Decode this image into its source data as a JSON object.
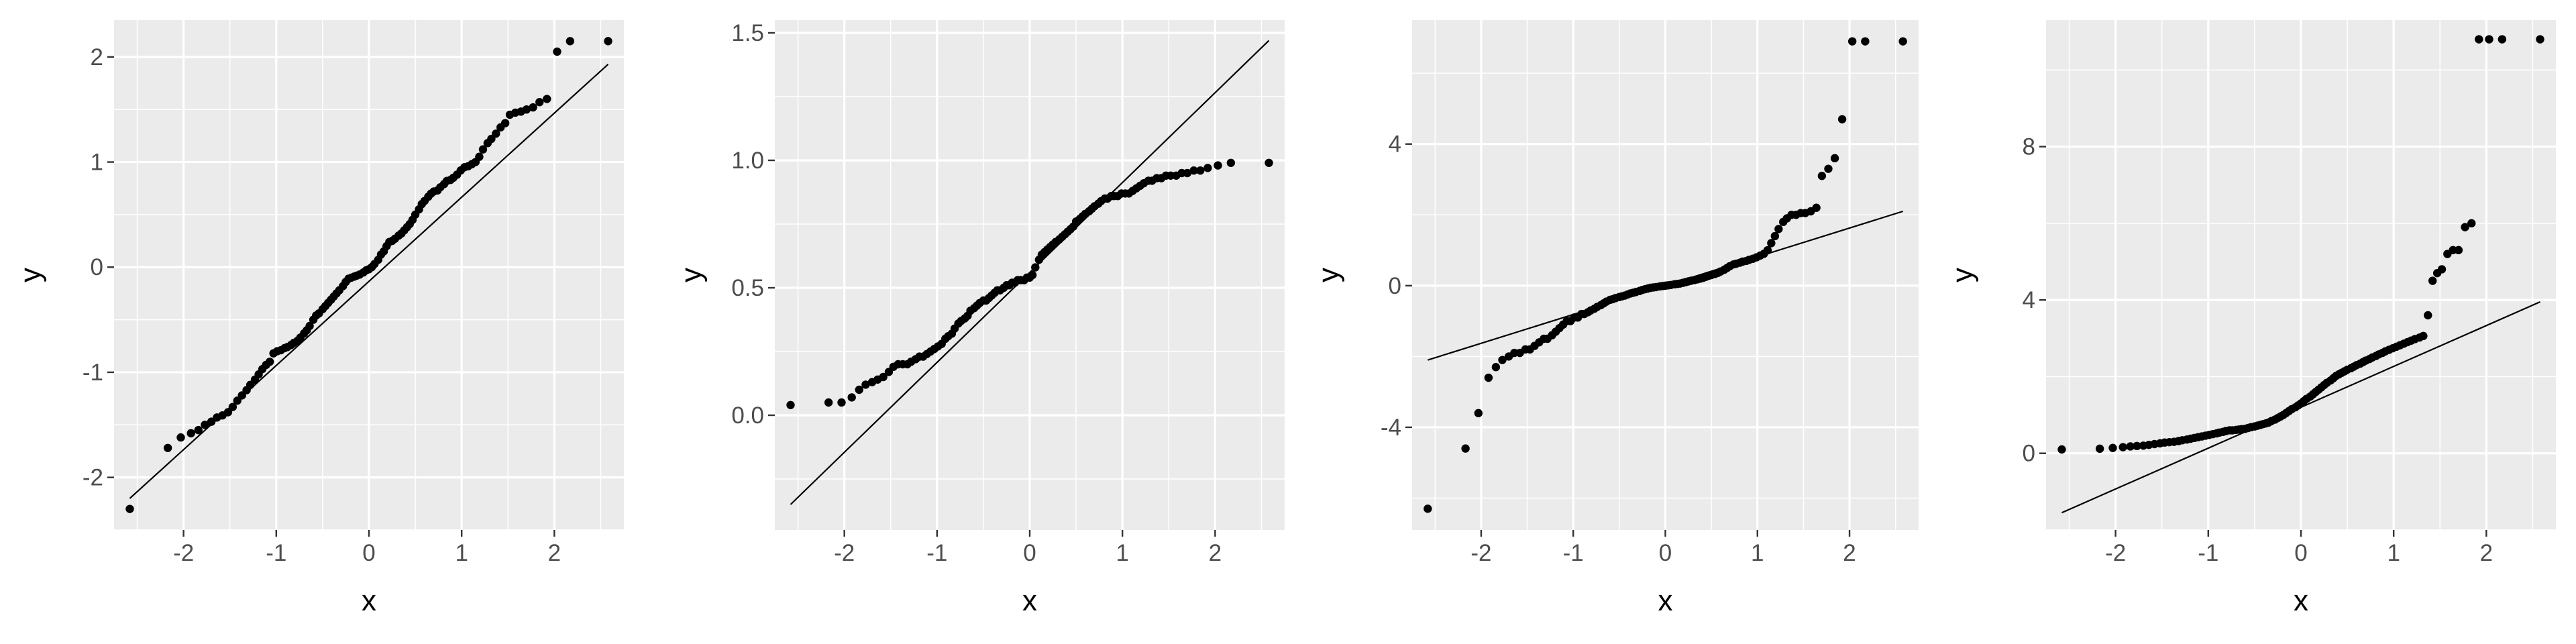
{
  "chart_data": [
    {
      "type": "scatter",
      "subtype": "qq-plot",
      "xlabel": "x",
      "ylabel": "y",
      "xlim": [
        -2.75,
        2.75
      ],
      "ylim": [
        -2.5,
        2.35
      ],
      "xticks": [
        -2,
        -1,
        0,
        1,
        2
      ],
      "yticks": [
        -2,
        -1,
        0,
        1,
        2
      ],
      "xtick_labels": [
        "-2",
        "-1",
        "0",
        "1",
        "2"
      ],
      "ytick_labels": [
        "-2",
        "-1",
        "0",
        "1",
        "2"
      ],
      "grid": true,
      "reference_line": {
        "x": [
          -2.58,
          2.58
        ],
        "y": [
          -2.2,
          1.93
        ]
      },
      "points": {
        "x": [
          -2.58,
          -2.17,
          -2.03,
          -1.92,
          -1.84,
          -1.77,
          -1.7,
          -1.64,
          -1.58,
          -1.52,
          -1.47,
          -1.42,
          -1.37,
          -1.32,
          -1.28,
          -1.23,
          -1.19,
          -1.15,
          -1.11,
          -1.07,
          -1.03,
          -0.99,
          -0.95,
          -0.91,
          -0.88,
          -0.84,
          -0.81,
          -0.77,
          -0.74,
          -0.7,
          -0.67,
          -0.64,
          -0.6,
          -0.57,
          -0.54,
          -0.5,
          -0.47,
          -0.44,
          -0.41,
          -0.38,
          -0.35,
          -0.32,
          -0.28,
          -0.25,
          -0.22,
          -0.19,
          -0.16,
          -0.13,
          -0.1,
          -0.06,
          -0.03,
          0.0,
          0.03,
          0.06,
          0.1,
          0.13,
          0.16,
          0.19,
          0.22,
          0.25,
          0.28,
          0.32,
          0.35,
          0.38,
          0.41,
          0.44,
          0.47,
          0.5,
          0.54,
          0.57,
          0.6,
          0.64,
          0.67,
          0.7,
          0.74,
          0.77,
          0.81,
          0.84,
          0.88,
          0.91,
          0.95,
          0.99,
          1.03,
          1.07,
          1.11,
          1.15,
          1.19,
          1.23,
          1.28,
          1.32,
          1.37,
          1.42,
          1.47,
          1.52,
          1.58,
          1.64,
          1.7,
          1.77,
          1.84,
          1.92,
          2.03,
          2.17,
          2.58
        ],
        "y": [
          -2.3,
          -1.72,
          -1.62,
          -1.58,
          -1.55,
          -1.5,
          -1.47,
          -1.43,
          -1.41,
          -1.38,
          -1.33,
          -1.27,
          -1.22,
          -1.17,
          -1.12,
          -1.07,
          -1.02,
          -0.97,
          -0.93,
          -0.9,
          -0.82,
          -0.8,
          -0.79,
          -0.77,
          -0.76,
          -0.74,
          -0.72,
          -0.7,
          -0.67,
          -0.63,
          -0.6,
          -0.56,
          -0.5,
          -0.46,
          -0.44,
          -0.4,
          -0.37,
          -0.34,
          -0.31,
          -0.28,
          -0.25,
          -0.22,
          -0.18,
          -0.14,
          -0.11,
          -0.1,
          -0.09,
          -0.08,
          -0.07,
          -0.05,
          -0.03,
          -0.02,
          0.0,
          0.03,
          0.07,
          0.12,
          0.15,
          0.2,
          0.24,
          0.25,
          0.27,
          0.3,
          0.32,
          0.35,
          0.38,
          0.41,
          0.45,
          0.5,
          0.55,
          0.6,
          0.63,
          0.67,
          0.7,
          0.72,
          0.73,
          0.76,
          0.79,
          0.82,
          0.83,
          0.85,
          0.88,
          0.92,
          0.95,
          0.96,
          0.98,
          1.0,
          1.05,
          1.12,
          1.18,
          1.22,
          1.27,
          1.33,
          1.37,
          1.45,
          1.47,
          1.48,
          1.5,
          1.52,
          1.57,
          1.6,
          2.05,
          2.15,
          2.15
        ]
      }
    },
    {
      "type": "scatter",
      "subtype": "qq-plot",
      "xlabel": "x",
      "ylabel": "y",
      "xlim": [
        -2.75,
        2.75
      ],
      "ylim": [
        -0.45,
        1.55
      ],
      "xticks": [
        -2,
        -1,
        0,
        1,
        2
      ],
      "yticks": [
        0.0,
        0.5,
        1.0,
        1.5
      ],
      "xtick_labels": [
        "-2",
        "-1",
        "0",
        "1",
        "2"
      ],
      "ytick_labels": [
        "0.0",
        "0.5",
        "1.0",
        "1.5"
      ],
      "grid": true,
      "reference_line": {
        "x": [
          -2.58,
          2.58
        ],
        "y": [
          -0.35,
          1.47
        ]
      },
      "points": {
        "x": [
          -2.58,
          -2.17,
          -2.03,
          -1.92,
          -1.84,
          -1.77,
          -1.7,
          -1.64,
          -1.58,
          -1.52,
          -1.47,
          -1.42,
          -1.37,
          -1.32,
          -1.28,
          -1.23,
          -1.19,
          -1.15,
          -1.11,
          -1.07,
          -1.03,
          -0.99,
          -0.95,
          -0.91,
          -0.88,
          -0.84,
          -0.81,
          -0.77,
          -0.74,
          -0.7,
          -0.67,
          -0.64,
          -0.6,
          -0.57,
          -0.54,
          -0.5,
          -0.47,
          -0.44,
          -0.41,
          -0.38,
          -0.35,
          -0.32,
          -0.28,
          -0.25,
          -0.22,
          -0.19,
          -0.16,
          -0.13,
          -0.1,
          -0.06,
          -0.03,
          0.0,
          0.03,
          0.06,
          0.1,
          0.13,
          0.16,
          0.19,
          0.22,
          0.25,
          0.28,
          0.32,
          0.35,
          0.38,
          0.41,
          0.44,
          0.47,
          0.5,
          0.54,
          0.57,
          0.6,
          0.64,
          0.67,
          0.7,
          0.74,
          0.77,
          0.81,
          0.84,
          0.88,
          0.91,
          0.95,
          0.99,
          1.03,
          1.07,
          1.11,
          1.15,
          1.19,
          1.23,
          1.28,
          1.32,
          1.37,
          1.42,
          1.47,
          1.52,
          1.58,
          1.64,
          1.7,
          1.77,
          1.84,
          1.92,
          2.03,
          2.17,
          2.58
        ],
        "y": [
          0.04,
          0.05,
          0.05,
          0.07,
          0.1,
          0.12,
          0.13,
          0.14,
          0.15,
          0.17,
          0.19,
          0.2,
          0.2,
          0.2,
          0.21,
          0.22,
          0.23,
          0.23,
          0.24,
          0.25,
          0.26,
          0.27,
          0.28,
          0.3,
          0.31,
          0.32,
          0.34,
          0.36,
          0.37,
          0.38,
          0.39,
          0.41,
          0.42,
          0.43,
          0.44,
          0.45,
          0.45,
          0.46,
          0.47,
          0.48,
          0.49,
          0.49,
          0.5,
          0.51,
          0.51,
          0.52,
          0.52,
          0.53,
          0.53,
          0.53,
          0.54,
          0.54,
          0.55,
          0.58,
          0.61,
          0.63,
          0.64,
          0.65,
          0.66,
          0.67,
          0.68,
          0.69,
          0.7,
          0.71,
          0.72,
          0.73,
          0.74,
          0.76,
          0.77,
          0.78,
          0.79,
          0.8,
          0.81,
          0.82,
          0.83,
          0.84,
          0.85,
          0.85,
          0.86,
          0.86,
          0.86,
          0.87,
          0.87,
          0.87,
          0.88,
          0.89,
          0.9,
          0.91,
          0.92,
          0.92,
          0.93,
          0.93,
          0.94,
          0.94,
          0.94,
          0.95,
          0.95,
          0.96,
          0.96,
          0.97,
          0.98,
          0.99,
          0.99
        ]
      }
    },
    {
      "type": "scatter",
      "subtype": "qq-plot",
      "xlabel": "x",
      "ylabel": "y",
      "xlim": [
        -2.75,
        2.75
      ],
      "ylim": [
        -6.9,
        7.5
      ],
      "xticks": [
        -2,
        -1,
        0,
        1,
        2
      ],
      "yticks": [
        -4,
        0,
        4
      ],
      "xtick_labels": [
        "-2",
        "-1",
        "0",
        "1",
        "2"
      ],
      "ytick_labels": [
        "-4",
        "0",
        "4"
      ],
      "grid": true,
      "reference_line": {
        "x": [
          -2.58,
          2.58
        ],
        "y": [
          -2.1,
          2.1
        ]
      },
      "points": {
        "x": [
          -2.58,
          -2.17,
          -2.03,
          -1.92,
          -1.84,
          -1.77,
          -1.7,
          -1.64,
          -1.58,
          -1.52,
          -1.47,
          -1.42,
          -1.37,
          -1.32,
          -1.28,
          -1.23,
          -1.19,
          -1.15,
          -1.11,
          -1.07,
          -1.03,
          -0.99,
          -0.95,
          -0.91,
          -0.88,
          -0.84,
          -0.81,
          -0.77,
          -0.74,
          -0.7,
          -0.67,
          -0.64,
          -0.6,
          -0.57,
          -0.54,
          -0.5,
          -0.47,
          -0.44,
          -0.41,
          -0.38,
          -0.35,
          -0.32,
          -0.28,
          -0.25,
          -0.22,
          -0.19,
          -0.16,
          -0.13,
          -0.1,
          -0.06,
          -0.03,
          0.0,
          0.03,
          0.06,
          0.1,
          0.13,
          0.16,
          0.19,
          0.22,
          0.25,
          0.28,
          0.32,
          0.35,
          0.38,
          0.41,
          0.44,
          0.47,
          0.5,
          0.54,
          0.57,
          0.6,
          0.64,
          0.67,
          0.7,
          0.74,
          0.77,
          0.81,
          0.84,
          0.88,
          0.91,
          0.95,
          0.99,
          1.03,
          1.07,
          1.11,
          1.15,
          1.19,
          1.23,
          1.28,
          1.32,
          1.37,
          1.42,
          1.47,
          1.52,
          1.58,
          1.64,
          1.7,
          1.77,
          1.84,
          1.92,
          2.03,
          2.17,
          2.58
        ],
        "y": [
          -6.3,
          -4.6,
          -3.6,
          -2.6,
          -2.3,
          -2.1,
          -2.0,
          -1.9,
          -1.9,
          -1.8,
          -1.8,
          -1.7,
          -1.6,
          -1.5,
          -1.5,
          -1.4,
          -1.3,
          -1.2,
          -1.1,
          -1.0,
          -1.0,
          -0.9,
          -0.9,
          -0.8,
          -0.8,
          -0.75,
          -0.7,
          -0.65,
          -0.6,
          -0.55,
          -0.5,
          -0.45,
          -0.4,
          -0.38,
          -0.35,
          -0.32,
          -0.3,
          -0.28,
          -0.25,
          -0.22,
          -0.2,
          -0.18,
          -0.15,
          -0.12,
          -0.1,
          -0.08,
          -0.06,
          -0.05,
          -0.04,
          -0.02,
          -0.01,
          0.0,
          0.01,
          0.02,
          0.04,
          0.05,
          0.06,
          0.08,
          0.1,
          0.12,
          0.14,
          0.16,
          0.18,
          0.2,
          0.22,
          0.25,
          0.28,
          0.3,
          0.33,
          0.36,
          0.4,
          0.45,
          0.5,
          0.55,
          0.6,
          0.62,
          0.65,
          0.68,
          0.7,
          0.73,
          0.76,
          0.8,
          0.85,
          0.9,
          1.0,
          1.2,
          1.4,
          1.6,
          1.8,
          1.9,
          2.0,
          2.0,
          2.05,
          2.05,
          2.1,
          2.2,
          3.1,
          3.3,
          3.6,
          4.7,
          6.9,
          6.9,
          6.9
        ]
      }
    },
    {
      "type": "scatter",
      "subtype": "qq-plot",
      "xlabel": "x",
      "ylabel": "y",
      "xlim": [
        -2.75,
        2.75
      ],
      "ylim": [
        -2.0,
        11.3
      ],
      "xticks": [
        -2,
        -1,
        0,
        1,
        2
      ],
      "yticks": [
        0,
        4,
        8
      ],
      "xtick_labels": [
        "-2",
        "-1",
        "0",
        "1",
        "2"
      ],
      "ytick_labels": [
        "0",
        "4",
        "8"
      ],
      "grid": true,
      "reference_line": {
        "x": [
          -2.58,
          2.58
        ],
        "y": [
          -1.55,
          3.95
        ]
      },
      "points": {
        "x": [
          -2.58,
          -2.17,
          -2.03,
          -1.92,
          -1.84,
          -1.77,
          -1.7,
          -1.64,
          -1.58,
          -1.52,
          -1.47,
          -1.42,
          -1.37,
          -1.32,
          -1.28,
          -1.23,
          -1.19,
          -1.15,
          -1.11,
          -1.07,
          -1.03,
          -0.99,
          -0.95,
          -0.91,
          -0.88,
          -0.84,
          -0.81,
          -0.77,
          -0.74,
          -0.7,
          -0.67,
          -0.64,
          -0.6,
          -0.57,
          -0.54,
          -0.5,
          -0.47,
          -0.44,
          -0.41,
          -0.38,
          -0.35,
          -0.32,
          -0.28,
          -0.25,
          -0.22,
          -0.19,
          -0.16,
          -0.13,
          -0.1,
          -0.06,
          -0.03,
          0.0,
          0.03,
          0.06,
          0.1,
          0.13,
          0.16,
          0.19,
          0.22,
          0.25,
          0.28,
          0.32,
          0.35,
          0.38,
          0.41,
          0.44,
          0.47,
          0.5,
          0.54,
          0.57,
          0.6,
          0.64,
          0.67,
          0.7,
          0.74,
          0.77,
          0.81,
          0.84,
          0.88,
          0.91,
          0.95,
          0.99,
          1.03,
          1.07,
          1.11,
          1.15,
          1.19,
          1.23,
          1.28,
          1.32,
          1.37,
          1.42,
          1.47,
          1.52,
          1.58,
          1.64,
          1.7,
          1.77,
          1.84,
          1.92,
          2.03,
          2.17,
          2.58
        ],
        "y": [
          0.1,
          0.12,
          0.14,
          0.16,
          0.18,
          0.19,
          0.2,
          0.22,
          0.24,
          0.26,
          0.28,
          0.29,
          0.3,
          0.32,
          0.34,
          0.36,
          0.38,
          0.4,
          0.42,
          0.44,
          0.46,
          0.48,
          0.5,
          0.52,
          0.54,
          0.56,
          0.58,
          0.6,
          0.6,
          0.61,
          0.62,
          0.63,
          0.64,
          0.66,
          0.68,
          0.7,
          0.72,
          0.74,
          0.76,
          0.78,
          0.8,
          0.84,
          0.88,
          0.92,
          0.96,
          1.0,
          1.05,
          1.1,
          1.15,
          1.2,
          1.25,
          1.3,
          1.36,
          1.42,
          1.48,
          1.54,
          1.6,
          1.66,
          1.72,
          1.78,
          1.84,
          1.9,
          1.96,
          2.02,
          2.06,
          2.1,
          2.14,
          2.18,
          2.22,
          2.26,
          2.3,
          2.34,
          2.38,
          2.42,
          2.46,
          2.5,
          2.54,
          2.58,
          2.62,
          2.66,
          2.7,
          2.74,
          2.78,
          2.82,
          2.86,
          2.9,
          2.94,
          2.98,
          3.02,
          3.06,
          3.6,
          4.5,
          4.7,
          4.8,
          5.2,
          5.3,
          5.3,
          5.9,
          6.0,
          10.8,
          10.8,
          10.8,
          10.8
        ]
      }
    }
  ]
}
